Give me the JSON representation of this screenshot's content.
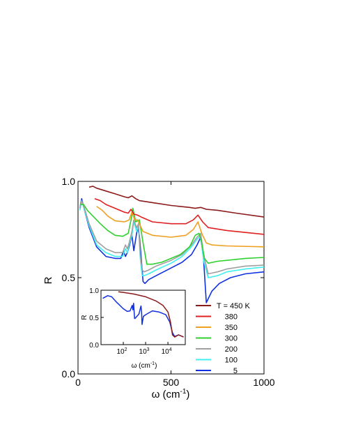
{
  "chart_data": [
    {
      "type": "line",
      "title": "",
      "xlabel": "ω (cm",
      "xlabel_sup": "-1",
      "xlabel_close": ")",
      "ylabel": "R",
      "xlim": [
        0,
        1000
      ],
      "ylim": [
        0,
        1
      ],
      "xticks": [
        0,
        500,
        1000
      ],
      "xtick_labels": [
        "0",
        "500",
        "1000"
      ],
      "yticks": [
        0,
        0.5,
        1
      ],
      "ytick_labels": [
        "0.0",
        "0.5",
        "1.0"
      ],
      "grid": false,
      "legend_position": "inside-lower-right",
      "legend_title_prefix": "T = ",
      "legend_unit": " K",
      "series": [
        {
          "name": "450",
          "color": "#8b1a1a",
          "x": [
            60,
            80,
            100,
            150,
            200,
            250,
            270,
            290,
            310,
            330,
            400,
            500,
            600,
            630,
            660,
            690,
            750,
            850,
            1000
          ],
          "y": [
            0.97,
            0.975,
            0.965,
            0.95,
            0.935,
            0.92,
            0.915,
            0.925,
            0.91,
            0.9,
            0.89,
            0.875,
            0.865,
            0.86,
            0.865,
            0.855,
            0.85,
            0.835,
            0.815
          ]
        },
        {
          "name": "380",
          "color": "#e02020",
          "x": [
            90,
            120,
            150,
            200,
            250,
            270,
            285,
            300,
            320,
            340,
            400,
            500,
            580,
            620,
            645,
            670,
            700,
            800,
            1000
          ],
          "y": [
            0.91,
            0.9,
            0.88,
            0.86,
            0.84,
            0.835,
            0.855,
            0.83,
            0.825,
            0.815,
            0.79,
            0.78,
            0.78,
            0.8,
            0.825,
            0.79,
            0.76,
            0.745,
            0.725
          ]
        },
        {
          "name": "350",
          "color": "#f0a020",
          "x": [
            100,
            130,
            160,
            200,
            250,
            275,
            290,
            305,
            320,
            350,
            400,
            500,
            580,
            620,
            645,
            665,
            690,
            720,
            800,
            1000
          ],
          "y": [
            0.87,
            0.85,
            0.82,
            0.795,
            0.79,
            0.8,
            0.84,
            0.8,
            0.8,
            0.74,
            0.72,
            0.71,
            0.72,
            0.75,
            0.79,
            0.73,
            0.68,
            0.67,
            0.665,
            0.66
          ]
        },
        {
          "name": "300",
          "color": "#30d030",
          "x": [
            10,
            30,
            50,
            80,
            120,
            160,
            200,
            240,
            270,
            285,
            295,
            310,
            330,
            350,
            370,
            400,
            450,
            500,
            550,
            600,
            630,
            650,
            665,
            680,
            700,
            750,
            800,
            900,
            1000
          ],
          "y": [
            0.88,
            0.88,
            0.85,
            0.82,
            0.78,
            0.745,
            0.72,
            0.715,
            0.73,
            0.8,
            0.86,
            0.79,
            0.8,
            0.68,
            0.57,
            0.57,
            0.58,
            0.6,
            0.62,
            0.66,
            0.72,
            0.73,
            0.68,
            0.6,
            0.575,
            0.585,
            0.59,
            0.6,
            0.605
          ]
        },
        {
          "name": "200",
          "color": "#a0a0a0",
          "x": [
            10,
            20,
            35,
            60,
            100,
            150,
            200,
            240,
            255,
            265,
            275,
            290,
            300,
            315,
            325,
            335,
            345,
            355,
            380,
            420,
            500,
            560,
            610,
            640,
            660,
            675,
            700,
            750,
            800,
            900,
            1000
          ],
          "y": [
            0.86,
            0.9,
            0.86,
            0.78,
            0.69,
            0.65,
            0.63,
            0.63,
            0.67,
            0.65,
            0.68,
            0.74,
            0.8,
            0.76,
            0.78,
            0.62,
            0.54,
            0.53,
            0.54,
            0.56,
            0.59,
            0.62,
            0.67,
            0.71,
            0.73,
            0.62,
            0.52,
            0.53,
            0.545,
            0.56,
            0.565
          ]
        },
        {
          "name": "100",
          "color": "#40f0f0",
          "x": [
            10,
            20,
            35,
            60,
            100,
            150,
            200,
            240,
            255,
            265,
            275,
            290,
            300,
            315,
            325,
            335,
            345,
            355,
            380,
            420,
            500,
            560,
            610,
            640,
            660,
            675,
            700,
            750,
            800,
            900,
            1000
          ],
          "y": [
            0.85,
            0.9,
            0.85,
            0.77,
            0.67,
            0.63,
            0.61,
            0.61,
            0.65,
            0.63,
            0.67,
            0.72,
            0.79,
            0.74,
            0.77,
            0.6,
            0.51,
            0.51,
            0.52,
            0.54,
            0.575,
            0.61,
            0.66,
            0.7,
            0.72,
            0.59,
            0.5,
            0.51,
            0.53,
            0.545,
            0.555
          ]
        },
        {
          "name": "5",
          "color": "#1030e0",
          "x": [
            10,
            20,
            35,
            60,
            100,
            150,
            200,
            230,
            245,
            255,
            265,
            275,
            290,
            300,
            310,
            320,
            330,
            340,
            350,
            360,
            380,
            420,
            500,
            560,
            610,
            640,
            660,
            675,
            690,
            720,
            760,
            820,
            900,
            1000
          ],
          "y": [
            0.86,
            0.91,
            0.85,
            0.76,
            0.66,
            0.61,
            0.6,
            0.6,
            0.64,
            0.61,
            0.63,
            0.66,
            0.72,
            0.64,
            0.7,
            0.76,
            0.72,
            0.6,
            0.48,
            0.47,
            0.49,
            0.51,
            0.55,
            0.58,
            0.62,
            0.67,
            0.71,
            0.6,
            0.37,
            0.43,
            0.47,
            0.5,
            0.52,
            0.53
          ]
        }
      ]
    },
    {
      "type": "line",
      "title": "",
      "inset": true,
      "xlabel": "ω (cm",
      "xlabel_sup": "-1",
      "xlabel_close": ")",
      "ylabel": "R",
      "x_scale": "log",
      "xlim": [
        10,
        60000
      ],
      "ylim": [
        0,
        1
      ],
      "xticks": [
        100,
        1000,
        10000
      ],
      "xtick_base": "10",
      "xtick_exponents": [
        "2",
        "3",
        "4"
      ],
      "yticks": [
        0,
        0.5,
        1
      ],
      "ytick_labels": [
        "0.0",
        "0.5",
        "1.0"
      ],
      "series": [
        {
          "name": "450",
          "color": "#8b1a1a",
          "x": [
            60,
            100,
            300,
            1000,
            3000,
            6000,
            10000,
            13000,
            16000,
            20000,
            30000,
            50000
          ],
          "y": [
            0.97,
            0.96,
            0.93,
            0.88,
            0.8,
            0.72,
            0.6,
            0.42,
            0.18,
            0.14,
            0.18,
            0.14
          ]
        },
        {
          "name": "5",
          "color": "#1030e0",
          "x": [
            12,
            20,
            30,
            50,
            100,
            150,
            200,
            250,
            270,
            290,
            320,
            350,
            500,
            620,
            660,
            690,
            800,
            1000,
            2000,
            4000,
            8000,
            12000,
            16000,
            20000,
            30000,
            50000
          ],
          "y": [
            0.85,
            0.9,
            0.88,
            0.78,
            0.66,
            0.61,
            0.62,
            0.72,
            0.64,
            0.76,
            0.48,
            0.49,
            0.56,
            0.71,
            0.6,
            0.37,
            0.52,
            0.55,
            0.62,
            0.6,
            0.55,
            0.42,
            0.22,
            0.15,
            0.18,
            0.14
          ]
        }
      ]
    }
  ]
}
